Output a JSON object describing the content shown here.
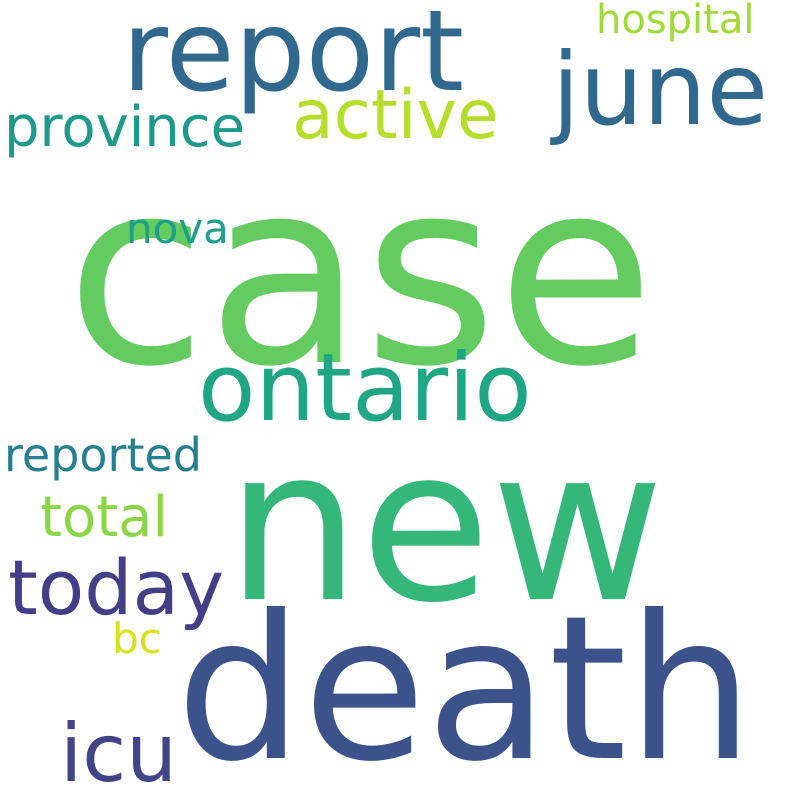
{
  "words": [
    {
      "key": "case",
      "text": "case",
      "color": "#63cb5f"
    },
    {
      "key": "new",
      "text": "new",
      "color": "#35b779"
    },
    {
      "key": "death",
      "text": "death",
      "color": "#3b528b"
    },
    {
      "key": "report",
      "text": "report",
      "color": "#31688e"
    },
    {
      "key": "june",
      "text": "june",
      "color": "#31688e"
    },
    {
      "key": "ontario",
      "text": "ontario",
      "color": "#21a685"
    },
    {
      "key": "active",
      "text": "active",
      "color": "#b5de2b"
    },
    {
      "key": "province",
      "text": "province",
      "color": "#1f9a8a"
    },
    {
      "key": "hospital",
      "text": "hospital",
      "color": "#a0da39"
    },
    {
      "key": "nova",
      "text": "nova",
      "color": "#1f9e89"
    },
    {
      "key": "reported",
      "text": "reported",
      "color": "#277f8e"
    },
    {
      "key": "total",
      "text": "total",
      "color": "#8bd646"
    },
    {
      "key": "today",
      "text": "today",
      "color": "#433e85"
    },
    {
      "key": "bc",
      "text": "bc",
      "color": "#d8e219"
    },
    {
      "key": "icu",
      "text": "icu",
      "color": "#414487"
    }
  ]
}
